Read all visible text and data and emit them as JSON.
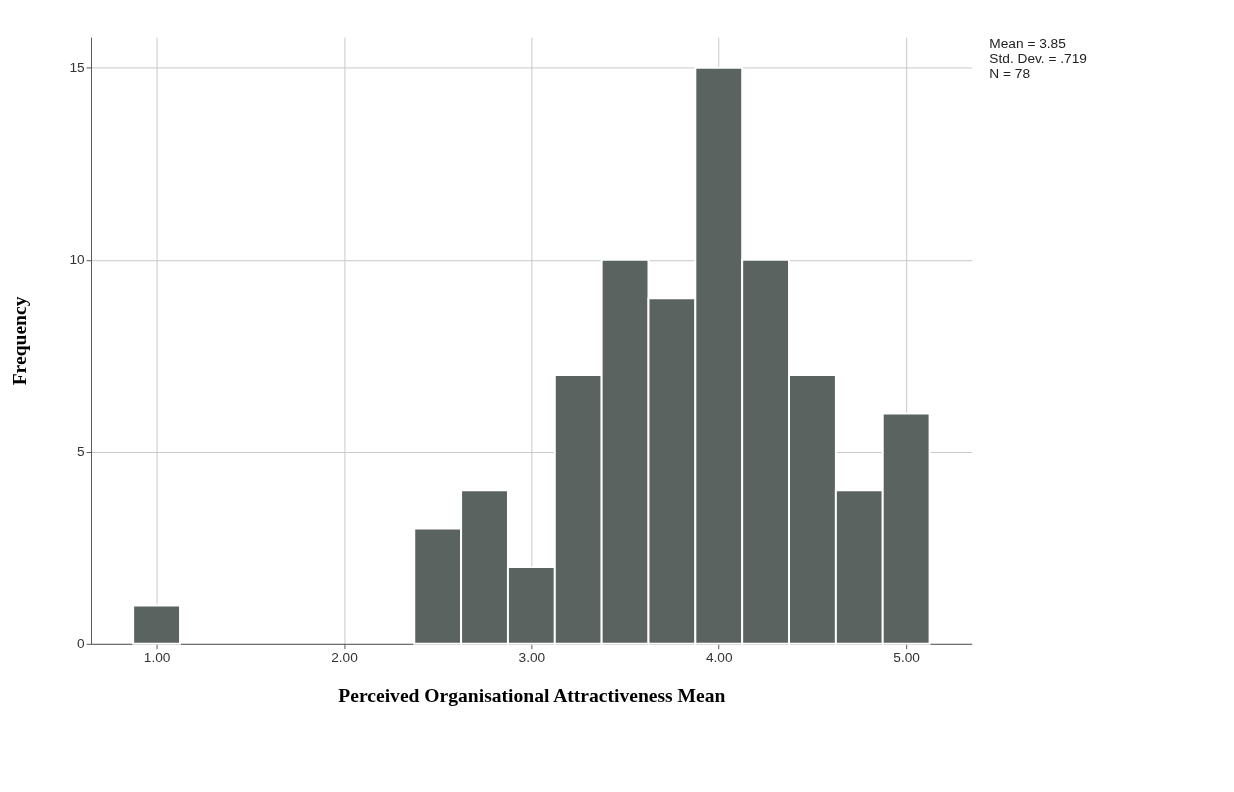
{
  "chart_data": {
    "type": "histogram",
    "xlabel": "Perceived Organisational Attractiveness Mean",
    "ylabel": "Frequency",
    "bins": [
      0.875,
      1.125,
      1.375,
      1.625,
      1.875,
      2.125,
      2.375,
      2.625,
      2.875,
      3.125,
      3.375,
      3.625,
      3.875,
      4.125,
      4.375,
      4.625,
      4.875,
      5.125
    ],
    "values": [
      1,
      0,
      0,
      0,
      0,
      0,
      3,
      4,
      2,
      7,
      10,
      9,
      15,
      10,
      7,
      4,
      6
    ],
    "color": "#5a6360",
    "xlim": [
      0.65,
      5.35
    ],
    "ylim": [
      0,
      15.8
    ],
    "xticks": [
      {
        "value": 1,
        "label": "1.00"
      },
      {
        "value": 2,
        "label": "2.00"
      },
      {
        "value": 3,
        "label": "3.00"
      },
      {
        "value": 4,
        "label": "4.00"
      },
      {
        "value": 5,
        "label": "5.00"
      }
    ],
    "yticks": [
      0,
      5,
      10,
      15
    ],
    "grid": true,
    "annotations": [
      "Mean = 3.85",
      "Std. Dev. = .719",
      "N = 78"
    ]
  }
}
